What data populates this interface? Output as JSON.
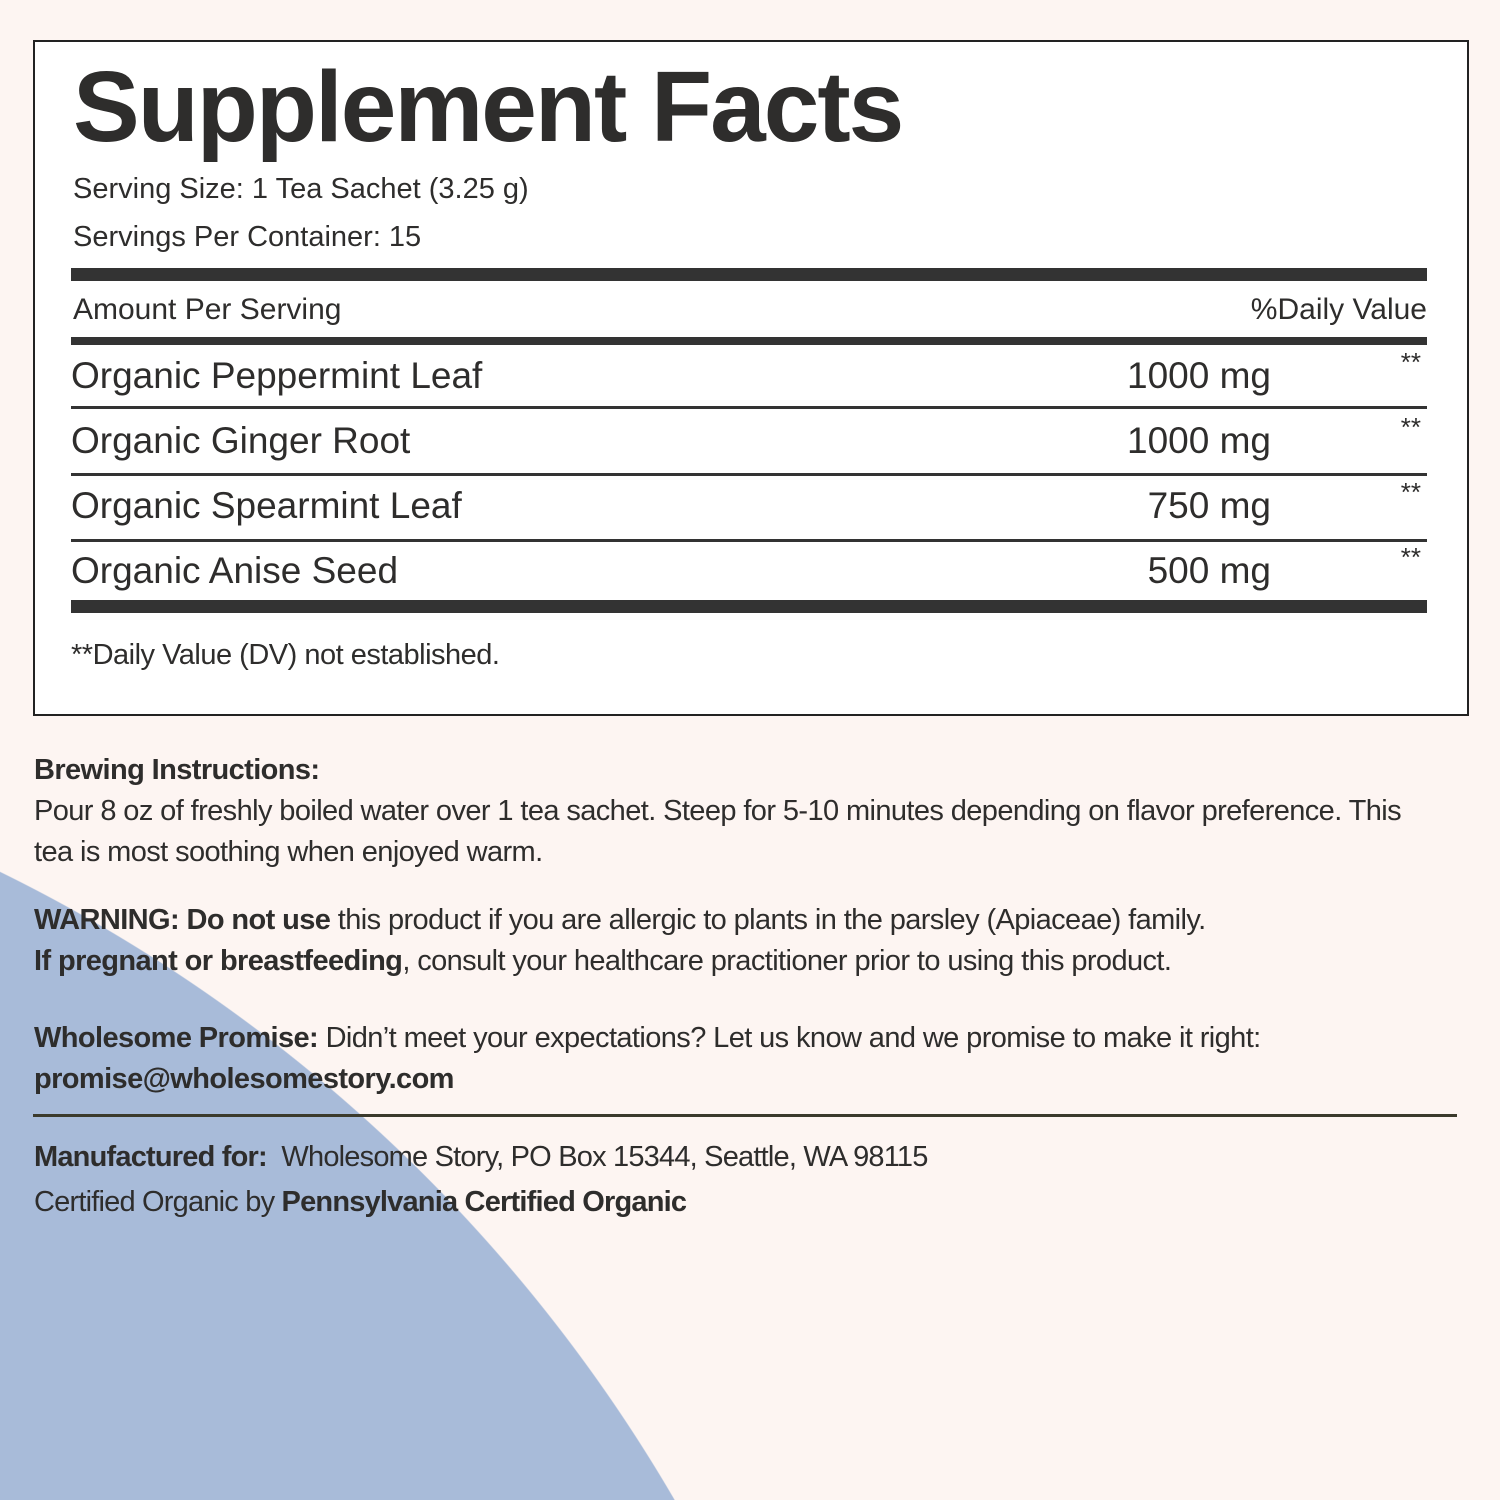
{
  "colors": {
    "background": "#fdf5f2",
    "accent_circle": "#a8bbd9",
    "text": "#2e2d2c"
  },
  "facts": {
    "title": "Supplement Facts",
    "serving_size": "Serving Size: 1 Tea Sachet (3.25 g)",
    "servings_per_container": "Servings Per Container: 15",
    "amount_header": "Amount Per Serving",
    "dv_header": "%Daily Value",
    "rows": [
      {
        "name": "Organic Peppermint Leaf",
        "amount": "1000 mg",
        "dv": "**"
      },
      {
        "name": "Organic Ginger Root",
        "amount": "1000 mg",
        "dv": "**"
      },
      {
        "name": "Organic Spearmint Leaf",
        "amount": "750 mg",
        "dv": "**"
      },
      {
        "name": "Organic Anise Seed",
        "amount": "500 mg",
        "dv": "**"
      }
    ],
    "footnote": "**Daily Value (DV) not established."
  },
  "brewing": {
    "label": "Brewing Instructions:",
    "text": "Pour 8 oz of freshly boiled water over 1 tea sachet. Steep for 5-10 minutes depending on flavor preference. This tea is most soothing when enjoyed warm."
  },
  "warning": {
    "label": "WARNING: Do not use",
    "text1": " this product if you are allergic to plants in the parsley (Apiaceae) family.",
    "bold2": "If pregnant or breastfeeding",
    "text2": ", consult your healthcare practitioner prior to using this product."
  },
  "promise": {
    "label": "Wholesome Promise:",
    "text": " Didn’t meet your expectations? Let us know and we promise to make it right:",
    "email": "promise@wholesomestory.com"
  },
  "manufacturer": {
    "label": "Manufactured for:",
    "text": "  Wholesome Story, PO Box 15344, Seattle, WA 98115",
    "cert_prefix": "Certified Organic by ",
    "cert_body": "Pennsylvania Certified Organic"
  }
}
